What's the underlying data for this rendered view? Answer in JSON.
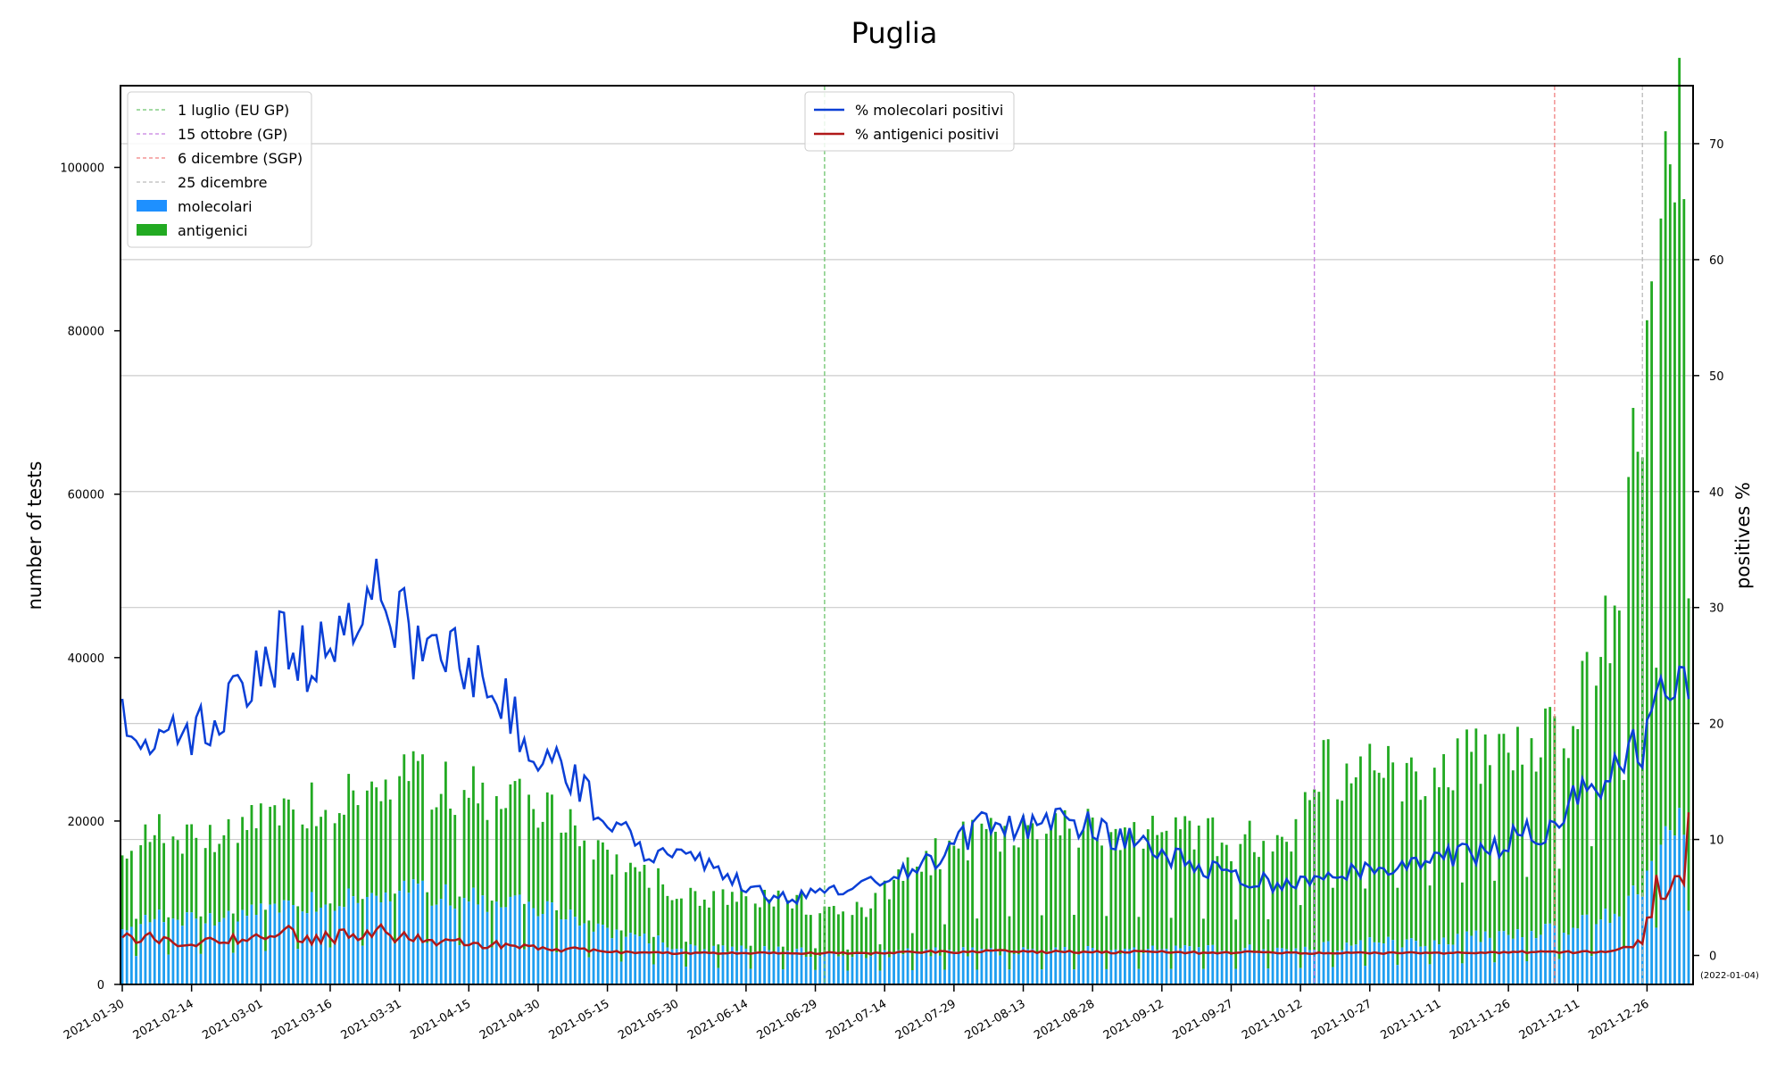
{
  "chart_data": {
    "type": "bar+line",
    "title": "Puglia",
    "ylabel_left": "number of tests",
    "ylabel_right": "positives %",
    "left_axis": {
      "min": 0,
      "max": 110000,
      "ticks": [
        0,
        20000,
        40000,
        60000,
        80000,
        100000
      ],
      "grid": true
    },
    "right_axis": {
      "min": -2.5,
      "max": 75,
      "ticks": [
        0,
        10,
        20,
        30,
        40,
        50,
        60,
        70
      ]
    },
    "x_axis": {
      "start_date": "2021-01-30",
      "end_date": "2022-01-04",
      "tick_labels": [
        "2021-01-30",
        "2021-02-14",
        "2021-03-01",
        "2021-03-16",
        "2021-03-31",
        "2021-04-15",
        "2021-04-30",
        "2021-05-15",
        "2021-05-30",
        "2021-06-14",
        "2021-06-29",
        "2021-07-14",
        "2021-07-29",
        "2021-08-13",
        "2021-08-28",
        "2021-09-12",
        "2021-09-27",
        "2021-10-12",
        "2021-10-27",
        "2021-11-11",
        "2021-11-26",
        "2021-12-11",
        "2021-12-26"
      ],
      "end_label": "(2022-01-04)"
    },
    "legend_left": {
      "placement": "upper-left",
      "entries": [
        {
          "label": "1 luglio (EU GP)",
          "style": "dashed",
          "color": "#6cc46c"
        },
        {
          "label": "15 ottobre (GP)",
          "style": "dashed",
          "color": "#c77fe0"
        },
        {
          "label": "6 dicembre (SGP)",
          "style": "dashed",
          "color": "#f08080"
        },
        {
          "label": "25 dicembre",
          "style": "dashed",
          "color": "#bbbbbb"
        },
        {
          "label": "molecolari",
          "style": "patch",
          "color": "#1e90ff"
        },
        {
          "label": "antigenici",
          "style": "patch",
          "color": "#22aa22"
        }
      ]
    },
    "legend_right": {
      "placement": "upper-center",
      "entries": [
        {
          "label": "% molecolari positivi",
          "color": "#0a3fd6"
        },
        {
          "label": "% antigenici positivi",
          "color": "#b01818"
        }
      ]
    },
    "vlines": [
      {
        "date": "2021-07-01",
        "color": "#6cc46c"
      },
      {
        "date": "2021-10-15",
        "color": "#c77fe0"
      },
      {
        "date": "2021-12-06",
        "color": "#f08080"
      },
      {
        "date": "2021-12-25",
        "color": "#bbbbbb"
      }
    ],
    "colors": {
      "molecolari": "#1e9ef0",
      "antigenici": "#22aa22",
      "mol_line": "#0a3fd6",
      "ant_line": "#b01818",
      "grid": "#cccccc"
    },
    "series_weekly": {
      "week_start": [
        "2021-01-30",
        "2021-02-06",
        "2021-02-13",
        "2021-02-20",
        "2021-02-27",
        "2021-03-06",
        "2021-03-13",
        "2021-03-20",
        "2021-03-27",
        "2021-04-03",
        "2021-04-10",
        "2021-04-17",
        "2021-04-24",
        "2021-05-01",
        "2021-05-08",
        "2021-05-15",
        "2021-05-22",
        "2021-05-29",
        "2021-06-05",
        "2021-06-12",
        "2021-06-19",
        "2021-06-26",
        "2021-07-03",
        "2021-07-10",
        "2021-07-17",
        "2021-07-24",
        "2021-07-31",
        "2021-08-07",
        "2021-08-14",
        "2021-08-21",
        "2021-08-28",
        "2021-09-04",
        "2021-09-11",
        "2021-09-18",
        "2021-09-25",
        "2021-10-02",
        "2021-10-09",
        "2021-10-16",
        "2021-10-23",
        "2021-10-30",
        "2021-11-06",
        "2021-11-13",
        "2021-11-20",
        "2021-11-27",
        "2021-12-04",
        "2021-12-11",
        "2021-12-18",
        "2021-12-25",
        "2022-01-01"
      ],
      "molecolari": [
        7500,
        8000,
        8200,
        8400,
        8800,
        9500,
        9900,
        10300,
        10800,
        11500,
        11000,
        10200,
        9800,
        9200,
        8000,
        6500,
        5800,
        5000,
        4600,
        4300,
        4200,
        4000,
        3800,
        3700,
        3800,
        4000,
        4000,
        4000,
        4100,
        4100,
        4100,
        4200,
        4200,
        4200,
        4200,
        4300,
        4400,
        4500,
        5000,
        5200,
        5400,
        5600,
        5900,
        6100,
        6600,
        7300,
        8300,
        12000,
        20000
      ],
      "antigenici": [
        10000,
        10300,
        10000,
        10500,
        11000,
        11500,
        11700,
        12300,
        13300,
        14000,
        13500,
        12900,
        12600,
        12000,
        10800,
        9000,
        7800,
        7000,
        6500,
        6300,
        6200,
        6100,
        5700,
        5800,
        9000,
        11500,
        13500,
        14500,
        14500,
        15000,
        14600,
        14300,
        14000,
        13800,
        13500,
        13300,
        13500,
        22000,
        21000,
        21000,
        21000,
        22000,
        22000,
        22500,
        23500,
        26000,
        35000,
        60000,
        85000
      ],
      "pct_molecolari": [
        21,
        18,
        19,
        20,
        24,
        27,
        25,
        30,
        32,
        27,
        26,
        24,
        21,
        17,
        15,
        12,
        9,
        8.5,
        8,
        6.5,
        5,
        5,
        5.5,
        6,
        7,
        8,
        10,
        12,
        11,
        12,
        11,
        10,
        9,
        8,
        7,
        6.5,
        6,
        7,
        7.5,
        7.5,
        8,
        8.5,
        9,
        10,
        11,
        14,
        16,
        18,
        25
      ],
      "pct_antigenici": [
        2,
        1.5,
        1.2,
        1.5,
        1.8,
        2,
        1.5,
        1.8,
        2,
        1.5,
        1.2,
        1,
        0.8,
        0.6,
        0.5,
        0.3,
        0.2,
        0.2,
        0.2,
        0.2,
        0.2,
        0.2,
        0.2,
        0.2,
        0.25,
        0.3,
        0.3,
        0.35,
        0.35,
        0.3,
        0.3,
        0.3,
        0.3,
        0.25,
        0.25,
        0.25,
        0.2,
        0.2,
        0.2,
        0.2,
        0.2,
        0.2,
        0.2,
        0.25,
        0.3,
        0.3,
        0.4,
        1.2,
        10
      ]
    }
  }
}
